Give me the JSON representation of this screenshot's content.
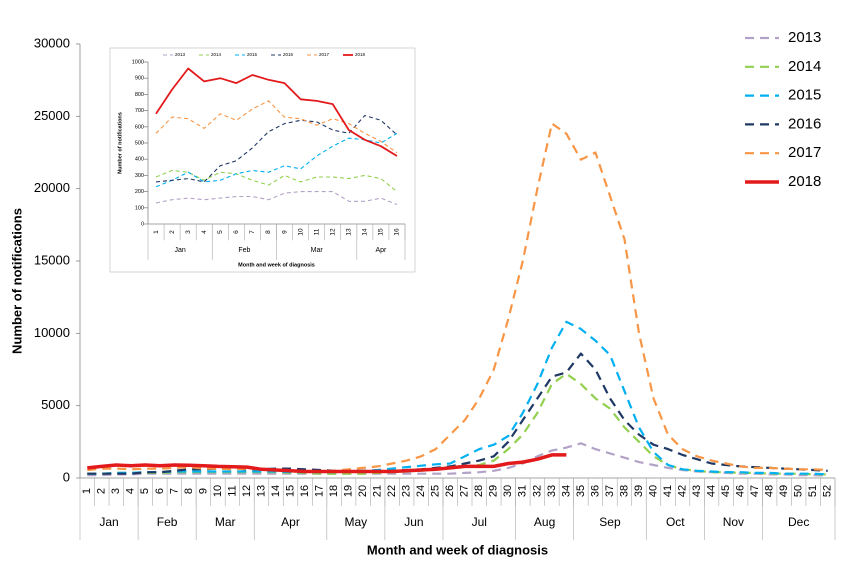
{
  "chart_data": [
    {
      "type": "line",
      "x_label": "Month and week of diagnosis",
      "y_label": "Number of notifications",
      "categories": [
        1,
        2,
        3,
        4,
        5,
        6,
        7,
        8,
        9,
        10,
        11,
        12,
        13,
        14,
        15,
        16,
        17,
        18,
        19,
        20,
        21,
        22,
        23,
        24,
        25,
        26,
        27,
        28,
        29,
        30,
        31,
        32,
        33,
        34,
        35,
        36,
        37,
        38,
        39,
        40,
        41,
        42,
        43,
        44,
        45,
        46,
        47,
        48,
        49,
        50,
        51,
        52
      ],
      "months": [
        "Jan",
        "Feb",
        "Mar",
        "Apr",
        "May",
        "Jun",
        "Jul",
        "Aug",
        "Sep",
        "Oct",
        "Nov",
        "Dec"
      ],
      "ylim": [
        0,
        30000
      ],
      "yticks": [
        0,
        5000,
        10000,
        15000,
        20000,
        25000,
        30000
      ],
      "legend": "right",
      "series": [
        {
          "name": "2013",
          "color": "#b3a2c7",
          "style": "dashed",
          "values": [
            200,
            200,
            250,
            250,
            300,
            300,
            300,
            300,
            300,
            300,
            300,
            300,
            300,
            300,
            300,
            300,
            300,
            300,
            300,
            300,
            300,
            300,
            300,
            300,
            300,
            300,
            350,
            400,
            500,
            700,
            1000,
            1500,
            1900,
            2100,
            2400,
            2000,
            1700,
            1400,
            1100,
            900,
            700,
            550,
            450,
            400,
            350,
            300,
            300,
            250,
            250,
            200,
            200,
            150
          ]
        },
        {
          "name": "2014",
          "color": "#92d050",
          "style": "dashed",
          "values": [
            300,
            300,
            350,
            350,
            350,
            350,
            400,
            400,
            400,
            400,
            400,
            400,
            400,
            400,
            350,
            350,
            300,
            300,
            300,
            300,
            350,
            400,
            450,
            500,
            600,
            700,
            800,
            900,
            1200,
            2000,
            3000,
            4500,
            6500,
            7200,
            6500,
            5500,
            4800,
            3500,
            2500,
            1500,
            900,
            600,
            500,
            400,
            400,
            350,
            350,
            300,
            300,
            300,
            250,
            250
          ]
        },
        {
          "name": "2015",
          "color": "#00b0f0",
          "style": "dashed",
          "values": [
            300,
            300,
            350,
            350,
            400,
            400,
            450,
            450,
            450,
            450,
            450,
            450,
            450,
            450,
            400,
            400,
            400,
            400,
            450,
            500,
            550,
            650,
            750,
            850,
            950,
            1000,
            1500,
            2000,
            2300,
            2900,
            4500,
            6500,
            9000,
            10800,
            10300,
            9500,
            8500,
            6000,
            3500,
            1800,
            900,
            600,
            500,
            450,
            400,
            400,
            350,
            350,
            300,
            300,
            300,
            250
          ]
        },
        {
          "name": "2016",
          "color": "#1f3864",
          "style": "dashed",
          "values": [
            300,
            300,
            300,
            300,
            400,
            400,
            500,
            600,
            600,
            650,
            650,
            600,
            600,
            650,
            650,
            600,
            550,
            500,
            500,
            500,
            500,
            500,
            550,
            600,
            700,
            800,
            1000,
            1200,
            1500,
            2500,
            4000,
            5500,
            7000,
            7300,
            8600,
            7500,
            5500,
            4000,
            3000,
            2300,
            2000,
            1600,
            1300,
            1000,
            900,
            800,
            750,
            700,
            650,
            600,
            550,
            500
          ]
        },
        {
          "name": "2017",
          "color": "#f79646",
          "style": "dashed",
          "values": [
            550,
            650,
            650,
            600,
            650,
            650,
            700,
            750,
            650,
            650,
            600,
            650,
            600,
            550,
            500,
            450,
            450,
            500,
            600,
            700,
            800,
            1000,
            1200,
            1500,
            2000,
            3000,
            4000,
            5500,
            7500,
            11000,
            15000,
            20000,
            24500,
            23800,
            22000,
            22500,
            19500,
            16500,
            10000,
            5500,
            3000,
            2000,
            1500,
            1200,
            1000,
            800,
            700,
            700,
            650,
            600,
            600,
            550
          ]
        },
        {
          "name": "2018",
          "color": "#e31a1c",
          "style": "solid",
          "values": [
            700,
            800,
            900,
            850,
            900,
            850,
            900,
            880,
            850,
            800,
            780,
            750,
            600,
            550,
            500,
            450,
            450,
            450,
            450,
            450,
            450,
            450,
            500,
            550,
            600,
            700,
            800,
            800,
            800,
            1000,
            1100,
            1300,
            1600,
            1600,
            null,
            null,
            null,
            null,
            null,
            null,
            null,
            null,
            null,
            null,
            null,
            null,
            null,
            null,
            null,
            null,
            null,
            null
          ]
        }
      ]
    },
    {
      "type": "line",
      "x_label": "Month and week of diagnosis",
      "y_label": "Number of notifications",
      "categories": [
        1,
        2,
        3,
        4,
        5,
        6,
        7,
        8,
        9,
        10,
        11,
        12,
        13,
        14,
        15,
        16
      ],
      "months": [
        "Jan",
        "Feb",
        "Mar",
        "Apr"
      ],
      "ylim": [
        0,
        1000
      ],
      "yticks": [
        0,
        100,
        200,
        300,
        400,
        500,
        600,
        700,
        800,
        900,
        1000
      ],
      "legend": "top",
      "series": [
        {
          "name": "2013",
          "color": "#b3a2c7",
          "style": "dashed",
          "values": [
            130,
            150,
            160,
            150,
            160,
            170,
            170,
            150,
            190,
            200,
            200,
            200,
            140,
            140,
            160,
            120
          ]
        },
        {
          "name": "2014",
          "color": "#92d050",
          "style": "dashed",
          "values": [
            290,
            330,
            320,
            270,
            320,
            310,
            270,
            240,
            300,
            260,
            290,
            290,
            280,
            300,
            280,
            200
          ]
        },
        {
          "name": "2015",
          "color": "#00b0f0",
          "style": "dashed",
          "values": [
            230,
            270,
            320,
            260,
            270,
            310,
            330,
            320,
            360,
            340,
            420,
            480,
            530,
            520,
            500,
            560
          ]
        },
        {
          "name": "2016",
          "color": "#1f3864",
          "style": "dashed",
          "values": [
            260,
            270,
            280,
            260,
            360,
            390,
            470,
            570,
            620,
            640,
            630,
            580,
            560,
            670,
            640,
            550
          ]
        },
        {
          "name": "2017",
          "color": "#f79646",
          "style": "dashed",
          "values": [
            560,
            660,
            650,
            590,
            680,
            640,
            710,
            760,
            660,
            650,
            610,
            650,
            620,
            560,
            510,
            440
          ]
        },
        {
          "name": "2018",
          "color": "#e31a1c",
          "style": "solid",
          "values": [
            680,
            830,
            960,
            880,
            900,
            870,
            920,
            890,
            870,
            770,
            760,
            740,
            580,
            520,
            480,
            420
          ]
        }
      ]
    }
  ]
}
